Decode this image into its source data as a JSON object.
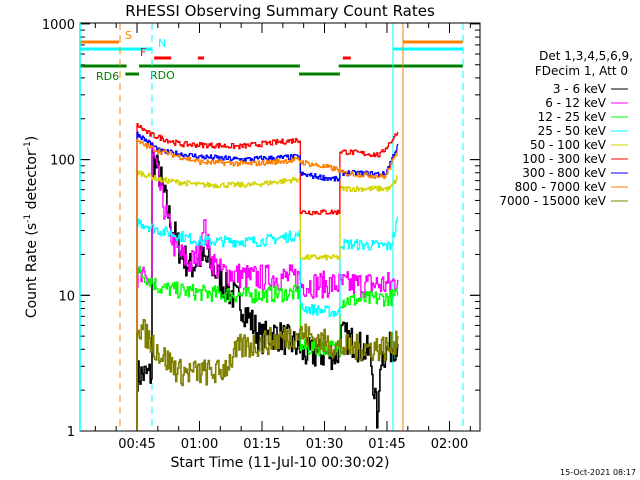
{
  "chart_data": {
    "type": "line",
    "title": "RHESSI Observing Summary Count Rates",
    "xlabel": "Start Time (11-Jul-10 00:30:02)",
    "ylabel": "Count Rate (s",
    "ylabel_sup1": "-1",
    "ylabel_mid": " detector",
    "ylabel_sup2": "-1",
    "ylabel_end": ")",
    "yscale": "log",
    "ylim": [
      1,
      1000
    ],
    "xlim_minutes": [
      31.3,
      127.3
    ],
    "x_unit": "minutes after 00:00 UT",
    "x_ticks": [
      {
        "t": 45,
        "label": "00:45"
      },
      {
        "t": 60,
        "label": "01:00"
      },
      {
        "t": 75,
        "label": "01:15"
      },
      {
        "t": 90,
        "label": "01:30"
      },
      {
        "t": 105,
        "label": "01:45"
      },
      {
        "t": 120,
        "label": "02:00"
      }
    ],
    "y_ticks": [
      {
        "v": 1,
        "label": "1"
      },
      {
        "v": 10,
        "label": "10"
      },
      {
        "v": 100,
        "label": "100"
      },
      {
        "v": 1000,
        "label": "1000"
      }
    ],
    "legend_header": [
      "Det 1,3,4,5,6,9,",
      "FDecim 1, Att 0"
    ],
    "legend_position": "right",
    "series": [
      {
        "name": "3 - 6 keV",
        "color": "#000000",
        "points": [
          [
            45,
            2.6
          ],
          [
            48.4,
            2.6
          ],
          [
            48.6,
            105
          ],
          [
            50.5,
            75
          ],
          [
            52.9,
            35
          ],
          [
            55.3,
            21
          ],
          [
            57.7,
            16
          ],
          [
            60.1,
            19
          ],
          [
            62.5,
            17
          ],
          [
            66.1,
            11.4
          ],
          [
            69.7,
            8.8
          ],
          [
            73.3,
            5.7
          ],
          [
            74.5,
            4.8
          ],
          [
            78.1,
            5.2
          ],
          [
            84.1,
            4.1
          ],
          [
            84.2,
            3.7
          ],
          [
            93.6,
            3.7
          ],
          [
            93.7,
            5.2
          ],
          [
            100.9,
            3.7
          ],
          [
            102.8,
            1.1
          ],
          [
            103.3,
            3.5
          ],
          [
            106.9,
            4.4
          ],
          [
            107.6,
            4.4
          ]
        ]
      },
      {
        "name": "6 - 12 keV",
        "color": "#ff00ff",
        "points": [
          [
            45,
            13
          ],
          [
            48.4,
            13
          ],
          [
            48.6,
            120
          ],
          [
            50.5,
            60
          ],
          [
            51.7,
            41
          ],
          [
            54.1,
            22
          ],
          [
            57.7,
            17
          ],
          [
            60.1,
            21
          ],
          [
            60.8,
            36
          ],
          [
            62.5,
            19
          ],
          [
            64.9,
            15
          ],
          [
            72.1,
            13.5
          ],
          [
            84.1,
            13.5
          ],
          [
            84.2,
            12
          ],
          [
            93.7,
            12
          ],
          [
            105.7,
            12
          ],
          [
            107.6,
            13
          ]
        ]
      },
      {
        "name": "12 - 25 keV",
        "color": "#00ff00",
        "points": [
          [
            45,
            15
          ],
          [
            48.1,
            13
          ],
          [
            50.5,
            11.3
          ],
          [
            60.1,
            10.4
          ],
          [
            72.1,
            10
          ],
          [
            84.1,
            10.4
          ],
          [
            84.2,
            4.1
          ],
          [
            93.6,
            4.1
          ],
          [
            93.7,
            9.1
          ],
          [
            105.7,
            9.6
          ],
          [
            107.6,
            10
          ]
        ]
      },
      {
        "name": "25 - 50 keV",
        "color": "#00ffff",
        "points": [
          [
            45,
            35
          ],
          [
            50.5,
            30
          ],
          [
            60.1,
            25
          ],
          [
            74.5,
            25
          ],
          [
            84.1,
            28
          ],
          [
            84.2,
            8.1
          ],
          [
            93.6,
            7.4
          ],
          [
            93.7,
            24
          ],
          [
            105.7,
            23
          ],
          [
            106.9,
            30
          ],
          [
            107.6,
            38
          ]
        ]
      },
      {
        "name": "50 - 100 keV",
        "color": "#d4d400",
        "points": [
          [
            45,
            81
          ],
          [
            50.5,
            71
          ],
          [
            60.1,
            65
          ],
          [
            72.1,
            65
          ],
          [
            84.1,
            72
          ],
          [
            84.2,
            19
          ],
          [
            93.6,
            19
          ],
          [
            93.7,
            61
          ],
          [
            105.7,
            61
          ],
          [
            107.6,
            75
          ]
        ]
      },
      {
        "name": "100 - 300 keV",
        "color": "#ff0000",
        "points": [
          [
            45,
            180
          ],
          [
            48.1,
            153
          ],
          [
            55.3,
            130
          ],
          [
            69.7,
            125
          ],
          [
            79.3,
            135
          ],
          [
            84.1,
            140
          ],
          [
            84.2,
            41
          ],
          [
            93.6,
            41
          ],
          [
            93.7,
            115
          ],
          [
            103.3,
            108
          ],
          [
            106.9,
            150
          ],
          [
            107.6,
            160
          ]
        ]
      },
      {
        "name": "300 - 800 keV",
        "color": "#0000ff",
        "points": [
          [
            45,
            155
          ],
          [
            50.5,
            115
          ],
          [
            60.1,
            105
          ],
          [
            69.7,
            100
          ],
          [
            84.1,
            105
          ],
          [
            84.2,
            78
          ],
          [
            93.6,
            71
          ],
          [
            93.7,
            80
          ],
          [
            104.5,
            78
          ],
          [
            106.9,
            115
          ],
          [
            107.6,
            130
          ]
        ]
      },
      {
        "name": "800 - 7000 keV",
        "color": "#ff8000",
        "points": [
          [
            45,
            135
          ],
          [
            50.5,
            115
          ],
          [
            60.1,
            96
          ],
          [
            72.1,
            93
          ],
          [
            84.1,
            100
          ],
          [
            84.2,
            96
          ],
          [
            93.6,
            84
          ],
          [
            93.7,
            80
          ],
          [
            104.5,
            75
          ],
          [
            106.9,
            105
          ],
          [
            107.6,
            120
          ]
        ]
      },
      {
        "name": "7000 - 15000 keV",
        "color": "#808000",
        "points": [
          [
            45,
            6.2
          ],
          [
            50.5,
            3.7
          ],
          [
            55.3,
            2.7
          ],
          [
            64.9,
            2.7
          ],
          [
            69.7,
            4.1
          ],
          [
            84.1,
            5.2
          ],
          [
            93.7,
            4.1
          ],
          [
            105.7,
            4.1
          ],
          [
            107.6,
            5
          ]
        ]
      }
    ],
    "status_flags": [
      {
        "label": "S",
        "color": "#ff8000",
        "segments": [
          [
            31.3,
            40.7
          ],
          [
            108.8,
            123.2
          ]
        ],
        "marker_style": "dashed",
        "markers": [
          40.7
        ]
      },
      {
        "label": "N",
        "color": "#00ffff",
        "segments": [
          [
            31.3,
            48.6
          ],
          [
            106.4,
            123.2
          ]
        ],
        "markers": [
          48.6
        ]
      },
      {
        "label": "F",
        "color": "#ff0000",
        "segments": [
          [
            49.1,
            53.2
          ],
          [
            59.6,
            61.1
          ],
          [
            94.4,
            96.3
          ]
        ]
      },
      {
        "label": "RDO",
        "color": "#008000",
        "segments": [
          [
            31.3,
            42.5
          ],
          [
            45.5,
            84.1
          ],
          [
            93.4,
            123.2
          ]
        ]
      },
      {
        "label": "RD6",
        "color": "#008000",
        "segments": [
          [
            42.2,
            45.5
          ],
          [
            83.9,
            93.7
          ]
        ]
      }
    ]
  },
  "footer": {
    "timestamp": "15-Oct-2021 08:17"
  }
}
